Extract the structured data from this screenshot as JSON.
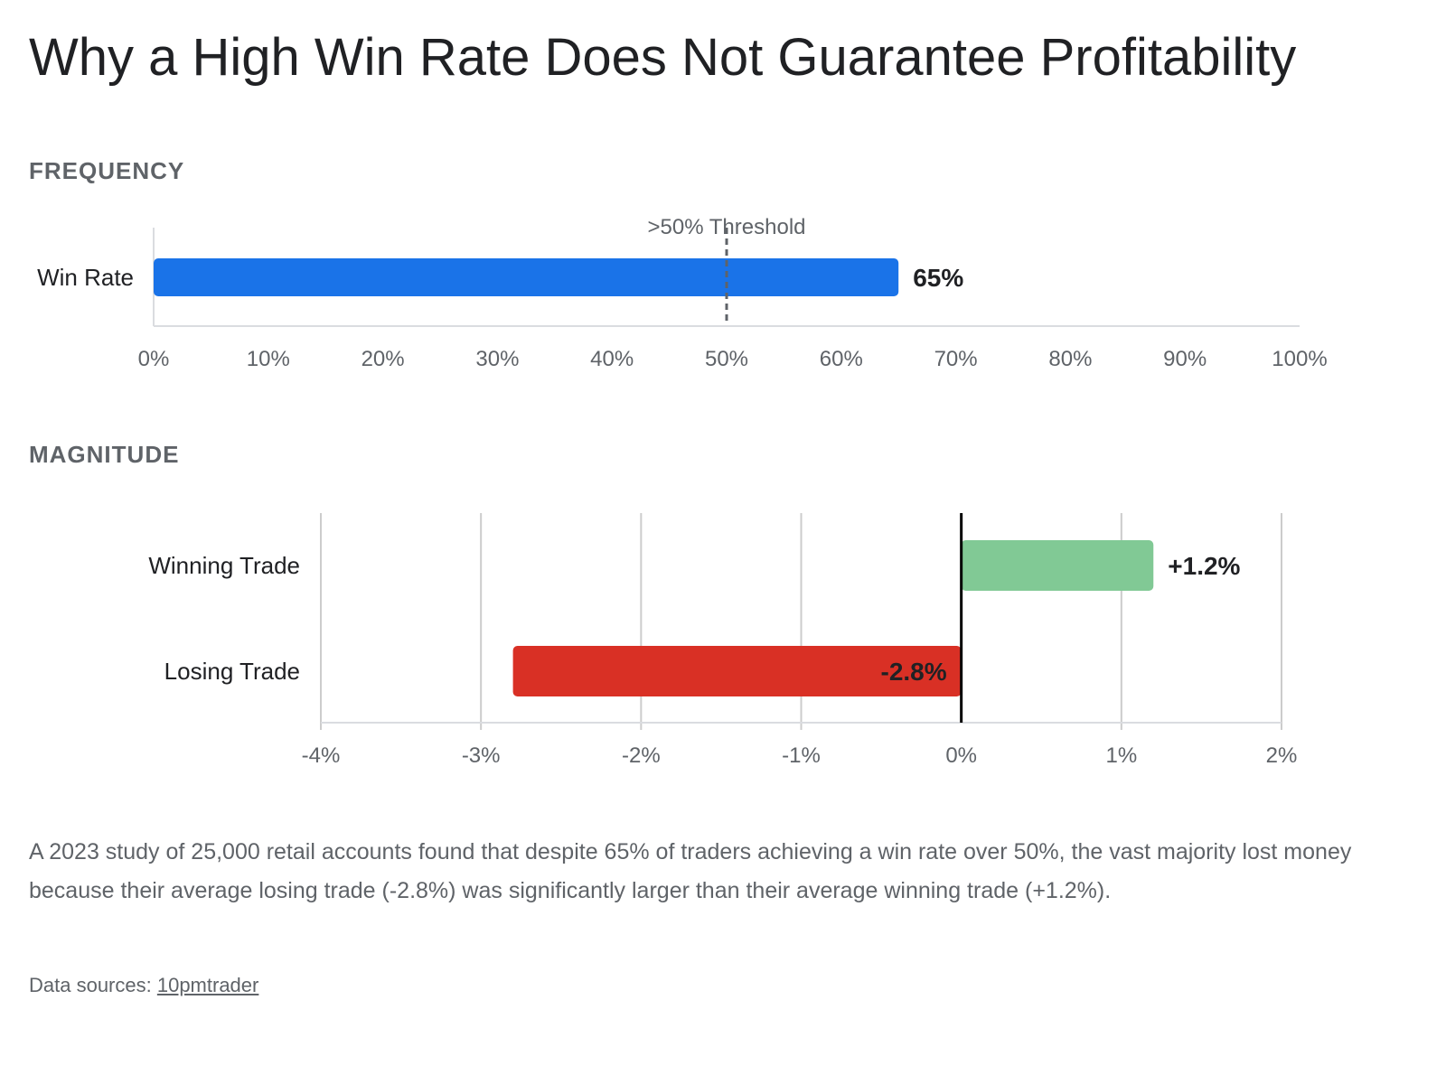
{
  "title": "Why a High Win Rate Does Not Guarantee Profitability",
  "chart_data": [
    {
      "type": "bar",
      "orientation": "horizontal",
      "section_label": "FREQUENCY",
      "categories": [
        "Win Rate"
      ],
      "values": [
        65
      ],
      "value_labels": [
        "65%"
      ],
      "xlim": [
        0,
        100
      ],
      "x_ticks": [
        0,
        10,
        20,
        30,
        40,
        50,
        60,
        70,
        80,
        90,
        100
      ],
      "x_tick_labels": [
        "0%",
        "10%",
        "20%",
        "30%",
        "40%",
        "50%",
        "60%",
        "70%",
        "80%",
        "90%",
        "100%"
      ],
      "threshold": {
        "value": 50,
        "label": ">50% Threshold"
      },
      "grid": false,
      "colors": {
        "bar": "#1a73e8",
        "threshold": "#5f6368"
      }
    },
    {
      "type": "bar",
      "orientation": "horizontal",
      "section_label": "MAGNITUDE",
      "categories": [
        "Winning Trade",
        "Losing Trade"
      ],
      "values": [
        1.2,
        -2.8
      ],
      "value_labels": [
        "+1.2%",
        "-2.8%"
      ],
      "xlim": [
        -4,
        2
      ],
      "x_ticks": [
        -4,
        -3,
        -2,
        -1,
        0,
        1,
        2
      ],
      "x_tick_labels": [
        "-4%",
        "-3%",
        "-2%",
        "-1%",
        "0%",
        "1%",
        "2%"
      ],
      "grid": true,
      "colors": {
        "positive": "#81c995",
        "negative": "#d93025",
        "zero_line": "#000000",
        "grid": "#cccccc"
      }
    }
  ],
  "caption": "A 2023 study of 25,000 retail accounts found that despite 65% of traders achieving a win rate over 50%, the vast majority lost money because their average losing trade (-2.8%) was significantly larger than their average winning trade (+1.2%).",
  "source": {
    "prefix": "Data sources: ",
    "link_text": "10pmtrader"
  }
}
